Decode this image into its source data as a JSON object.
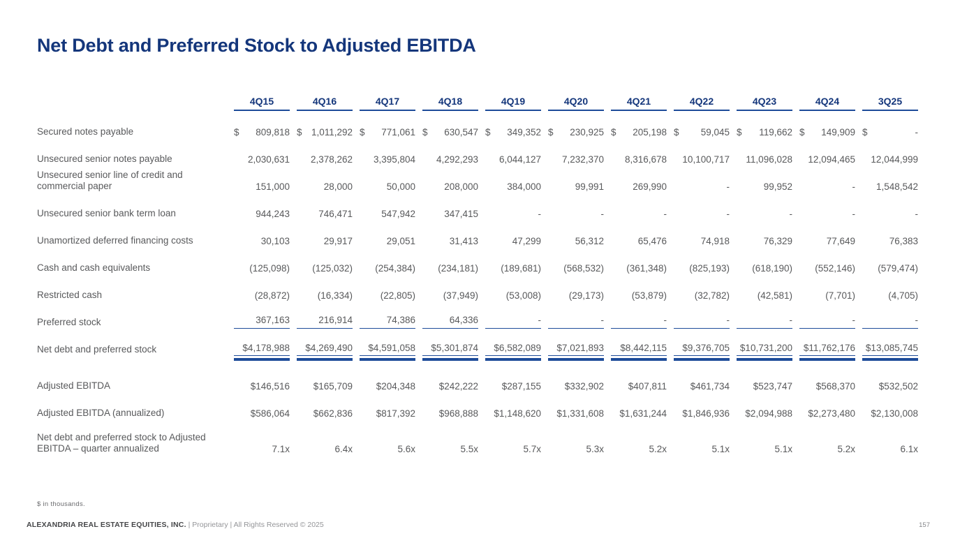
{
  "title": "Net Debt and Preferred Stock to Adjusted EBITDA",
  "colors": {
    "navy": "#14367b",
    "rule_blue": "#1d4b99",
    "body_gray": "#58595b"
  },
  "table": {
    "columns": [
      "4Q15",
      "4Q16",
      "4Q17",
      "4Q18",
      "4Q19",
      "4Q20",
      "4Q21",
      "4Q22",
      "4Q23",
      "4Q24",
      "3Q25"
    ],
    "rows": [
      {
        "label": "Secured notes payable",
        "dollar": "split",
        "style": "normal",
        "values": [
          "809,818",
          "1,011,292",
          "771,061",
          "630,547",
          "349,352",
          "230,925",
          "205,198",
          "59,045",
          "119,662",
          "149,909",
          "-"
        ]
      },
      {
        "label": "Unsecured senior notes payable",
        "style": "normal",
        "values": [
          "2,030,631",
          "2,378,262",
          "3,395,804",
          "4,292,293",
          "6,044,127",
          "7,232,370",
          "8,316,678",
          "10,100,717",
          "11,096,028",
          "12,094,465",
          "12,044,999"
        ]
      },
      {
        "label_lines": [
          "Unsecured senior line of credit and",
          "commercial paper"
        ],
        "style": "normal",
        "values": [
          "151,000",
          "28,000",
          "50,000",
          "208,000",
          "384,000",
          "99,991",
          "269,990",
          "-",
          "99,952",
          "-",
          "1,548,542"
        ]
      },
      {
        "label": "Unsecured senior bank term loan",
        "style": "normal",
        "values": [
          "944,243",
          "746,471",
          "547,942",
          "347,415",
          "-",
          "-",
          "-",
          "-",
          "-",
          "-",
          "-"
        ]
      },
      {
        "label": "Unamortized deferred financing costs",
        "style": "normal",
        "values": [
          "30,103",
          "29,917",
          "29,051",
          "31,413",
          "47,299",
          "56,312",
          "65,476",
          "74,918",
          "76,329",
          "77,649",
          "76,383"
        ]
      },
      {
        "label": "Cash and cash equivalents",
        "style": "normal",
        "values": [
          "(125,098)",
          "(125,032)",
          "(254,384)",
          "(234,181)",
          "(189,681)",
          "(568,532)",
          "(361,348)",
          "(825,193)",
          "(618,190)",
          "(552,146)",
          "(579,474)"
        ]
      },
      {
        "label": "Restricted cash",
        "style": "normal",
        "values": [
          "(28,872)",
          "(16,334)",
          "(22,805)",
          "(37,949)",
          "(53,008)",
          "(29,173)",
          "(53,879)",
          "(32,782)",
          "(42,581)",
          "(7,701)",
          "(4,705)"
        ]
      },
      {
        "label": "Preferred stock",
        "style": "rule",
        "values": [
          "367,163",
          "216,914",
          "74,386",
          "64,336",
          "-",
          "-",
          "-",
          "-",
          "-",
          "-",
          "-"
        ]
      },
      {
        "label": "Net debt and preferred stock",
        "style": "total",
        "values": [
          "$4,178,988",
          "$4,269,490",
          "$4,591,058",
          "$5,301,874",
          "$6,582,089",
          "$7,021,893",
          "$8,442,115",
          "$9,376,705",
          "$10,731,200",
          "$11,762,176",
          "$13,085,745"
        ]
      },
      {
        "label": "Adjusted EBITDA",
        "style": "normal",
        "gap_above": true,
        "values": [
          "$146,516",
          "$165,709",
          "$204,348",
          "$242,222",
          "$287,155",
          "$332,902",
          "$407,811",
          "$461,734",
          "$523,747",
          "$568,370",
          "$532,502"
        ]
      },
      {
        "label": "Adjusted EBITDA (annualized)",
        "style": "normal",
        "values": [
          "$586,064",
          "$662,836",
          "$817,392",
          "$968,888",
          "$1,148,620",
          "$1,331,608",
          "$1,631,244",
          "$1,846,936",
          "$2,094,988",
          "$2,273,480",
          "$2,130,008"
        ]
      },
      {
        "label_lines": [
          "Net debt and preferred stock to Adjusted",
          "EBITDA – quarter annualized"
        ],
        "style": "normal",
        "gap_above_small": true,
        "values": [
          "7.1x",
          "6.4x",
          "5.6x",
          "5.5x",
          "5.7x",
          "5.3x",
          "5.2x",
          "5.1x",
          "5.1x",
          "5.2x",
          "6.1x"
        ]
      }
    ]
  },
  "footnote": {
    "text": "$ in thousands."
  },
  "footer": {
    "company": "ALEXANDRIA REAL ESTATE EQUITIES, INC.",
    "rights": " | Proprietary | All Rights Reserved © 2025",
    "page": "157"
  }
}
